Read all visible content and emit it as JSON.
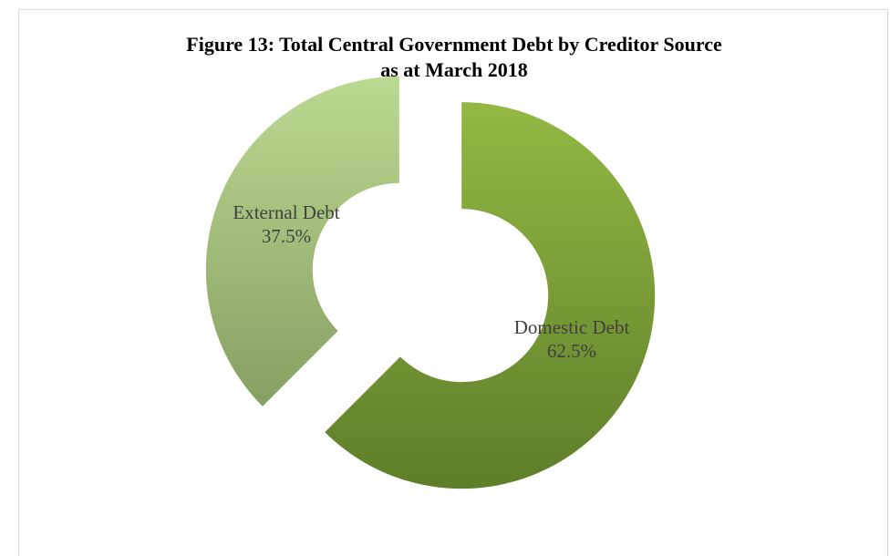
{
  "chart_data": {
    "type": "pie",
    "variant": "donut",
    "exploded": true,
    "title_lines": [
      "Figure 13: Total Central Government Debt by Creditor Source",
      "as at March 2018"
    ],
    "slices": [
      {
        "name": "Domestic Debt",
        "value": 62.5,
        "label": "62.5%",
        "color_light": "#93b843",
        "color_dark": "#5e7e29"
      },
      {
        "name": "External Debt",
        "value": 37.5,
        "label": "37.5%",
        "color_light": "#bcd992",
        "color_dark": "#879f62"
      }
    ],
    "legend": "none",
    "data_labels": "on-slice"
  }
}
